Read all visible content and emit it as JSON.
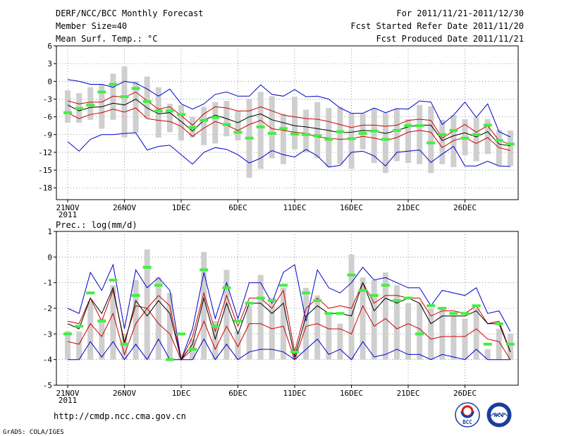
{
  "header": {
    "title": "DERF/NCC/BCC Monthly Forecast",
    "member_size": "Member Size=40",
    "variable": "Mean Surf. Temp.: °C",
    "for_period": "For 2011/11/21-2011/12/30",
    "fcst_started": "Fcst Started Refer Date 2011/11/20",
    "fcst_produced": "Fcst Produced Date 2011/11/21"
  },
  "footer": {
    "url": "http://cmdp.ncc.cma.gov.cn",
    "credit": "GrADS: COLA/IGES",
    "logo_bcc": "BCC",
    "logo_ncc": "NCC"
  },
  "colors": {
    "max_min": "#0000cc",
    "quartile": "#cc0000",
    "median": "#000000",
    "spread_bar": "#cfcfcf",
    "highlight": "#44ee44",
    "grid": "#808080"
  },
  "chart_data": [
    {
      "type": "box-spread-line",
      "title": "Mean Surf. Temp.: °C",
      "ylim": [
        -20,
        6
      ],
      "yticks": [
        6,
        3,
        0,
        -3,
        -6,
        -9,
        -12,
        -15,
        -18
      ],
      "xticks": [
        {
          "day": 1,
          "label": "21NOV",
          "sub": "2011"
        },
        {
          "day": 6,
          "label": "26NOV"
        },
        {
          "day": 11,
          "label": "1DEC"
        },
        {
          "day": 16,
          "label": "6DEC"
        },
        {
          "day": 21,
          "label": "11DEC"
        },
        {
          "day": 26,
          "label": "16DEC"
        },
        {
          "day": 31,
          "label": "21DEC"
        },
        {
          "day": 36,
          "label": "26DEC"
        }
      ],
      "days": [
        1,
        2,
        3,
        4,
        5,
        6,
        7,
        8,
        9,
        10,
        11,
        12,
        13,
        14,
        15,
        16,
        17,
        18,
        19,
        20,
        21,
        22,
        23,
        24,
        25,
        26,
        27,
        28,
        29,
        30,
        31,
        32,
        33,
        34,
        35,
        36,
        37,
        38,
        39,
        40
      ],
      "series": [
        {
          "name": "max",
          "values": [
            0.3,
            0,
            -0.5,
            -0.5,
            -1,
            0,
            -0.3,
            -1.3,
            -2.5,
            -1.3,
            -3.8,
            -4.7,
            -3.8,
            -2.2,
            -1.8,
            -2.5,
            -2.5,
            -0.6,
            -2.2,
            -2.5,
            -1.4,
            -2.6,
            -2.5,
            -3,
            -4.5,
            -5.4,
            -5.4,
            -4.5,
            -5.3,
            -4.6,
            -4.7,
            -3.3,
            -3.5,
            -7.3,
            -5.7,
            -3.5,
            -6.1,
            -3.8,
            -8.5,
            -9.4
          ]
        },
        {
          "name": "upper_quartile",
          "values": [
            -3.3,
            -3.8,
            -3.5,
            -3.5,
            -2.5,
            -2.7,
            -1.8,
            -3.3,
            -4.7,
            -4.3,
            -5.8,
            -7.4,
            -5.5,
            -4.3,
            -4.5,
            -5,
            -5,
            -4.3,
            -5,
            -5.7,
            -6,
            -6.3,
            -6.4,
            -6.8,
            -7.3,
            -7.8,
            -7.4,
            -7.4,
            -7.6,
            -7.4,
            -6.6,
            -6.4,
            -6.6,
            -9.6,
            -8.4,
            -7.3,
            -8.6,
            -7.5,
            -10,
            -10.6
          ]
        },
        {
          "name": "median",
          "values": [
            -4,
            -5,
            -4.4,
            -4.3,
            -3.7,
            -4,
            -3,
            -4.5,
            -5.5,
            -5.3,
            -6.8,
            -8.4,
            -6.6,
            -5.7,
            -6.3,
            -7,
            -6,
            -5.5,
            -6.5,
            -7,
            -7.5,
            -7.7,
            -8,
            -8.3,
            -8.7,
            -8.6,
            -8.3,
            -8.4,
            -8.8,
            -8.3,
            -7.7,
            -7.4,
            -7.4,
            -10,
            -9.2,
            -8.7,
            -9.4,
            -8.5,
            -10.6,
            -10.9
          ]
        },
        {
          "name": "lower_quartile",
          "values": [
            -5.3,
            -6.3,
            -5.6,
            -5.3,
            -4.7,
            -5.2,
            -4.5,
            -6.3,
            -6.6,
            -6.8,
            -7.6,
            -9.3,
            -7.9,
            -6.8,
            -7.4,
            -8.3,
            -7.3,
            -6.6,
            -8,
            -8.3,
            -8.6,
            -8.8,
            -9.4,
            -9.6,
            -9.8,
            -9.7,
            -9.3,
            -9.6,
            -10,
            -9.5,
            -8.6,
            -8.3,
            -8.6,
            -11.2,
            -10,
            -9.5,
            -10.5,
            -9.5,
            -11.2,
            -11.7
          ]
        },
        {
          "name": "min",
          "values": [
            -10.2,
            -11.8,
            -9.8,
            -9,
            -9,
            -8.8,
            -8.7,
            -11.6,
            -11,
            -10.8,
            -12.4,
            -14,
            -12,
            -11.2,
            -11.5,
            -12.4,
            -13.8,
            -13,
            -11.7,
            -12.4,
            -12.8,
            -11.5,
            -12.6,
            -14.5,
            -14.2,
            -12,
            -11.8,
            -12.6,
            -14.3,
            -12,
            -11.8,
            -11.6,
            -13.7,
            -12.3,
            -11,
            -14.3,
            -14.3,
            -13.5,
            -14.3,
            -14.4
          ]
        },
        {
          "name": "spread_top",
          "values": [
            -1.5,
            -2,
            -1,
            -0.5,
            1.3,
            2.5,
            0,
            0.8,
            -1,
            -3.8,
            -4,
            -6,
            -4.3,
            -3.5,
            -3.3,
            -5,
            -3,
            -1.8,
            -2.5,
            -5.5,
            -2.6,
            -4.8,
            -3.5,
            -4.5,
            -4.3,
            -5.4,
            -5.5,
            -4.6,
            -5.3,
            -4.7,
            -6.4,
            -4,
            -4.2,
            -6.5,
            -5.7,
            -6.4,
            -6.1,
            -6.4,
            -8.2,
            -8.3
          ]
        },
        {
          "name": "spread_bottom",
          "values": [
            -7,
            -7,
            -6.5,
            -8,
            -6.5,
            -9.5,
            -8.7,
            -6.2,
            -9.5,
            -8.6,
            -10,
            -9.5,
            -10.8,
            -10.5,
            -9.3,
            -10,
            -16.3,
            -14.8,
            -13,
            -14,
            -11.5,
            -12,
            -13,
            -14.5,
            -14,
            -14.8,
            -11.5,
            -13.8,
            -15.5,
            -13.5,
            -13.8,
            -14,
            -15.5,
            -14,
            -14.5,
            -12.5,
            -13.5,
            -12.3,
            -14.2,
            -14.3
          ]
        },
        {
          "name": "highlight",
          "values": [
            -5.3,
            -4.6,
            -4,
            -1.8,
            -0.5,
            -2.6,
            -1.2,
            -3.4,
            -5,
            -5,
            -5.6,
            -7.8,
            -6.6,
            -6.1,
            -7.3,
            -8.6,
            -9.6,
            -7.7,
            -8.8,
            -8,
            -8.9,
            -9,
            -9.2,
            -9.8,
            -8.5,
            -9.7,
            -8.8,
            -8.4,
            -9.8,
            -8.3,
            -7.5,
            -7.5,
            -10.4,
            -9,
            -8.3,
            -9.6,
            -9,
            -7.4,
            -10,
            -10.6
          ]
        }
      ]
    },
    {
      "type": "box-spread-line",
      "title": "Prec.: log(mm/d)",
      "ylim": [
        -5,
        1
      ],
      "yticks": [
        1,
        0,
        -1,
        -2,
        -3,
        -4,
        -5
      ],
      "xticks": [
        {
          "day": 1,
          "label": "21NOV",
          "sub": "2011"
        },
        {
          "day": 6,
          "label": "26NOV"
        },
        {
          "day": 11,
          "label": "1DEC"
        },
        {
          "day": 16,
          "label": "6DEC"
        },
        {
          "day": 21,
          "label": "11DEC"
        },
        {
          "day": 26,
          "label": "16DEC"
        },
        {
          "day": 31,
          "label": "21DEC"
        },
        {
          "day": 36,
          "label": "26DEC"
        }
      ],
      "days": [
        1,
        2,
        3,
        4,
        5,
        6,
        7,
        8,
        9,
        10,
        11,
        12,
        13,
        14,
        15,
        16,
        17,
        18,
        19,
        20,
        21,
        22,
        23,
        24,
        25,
        26,
        27,
        28,
        29,
        30,
        31,
        32,
        33,
        34,
        35,
        36,
        37,
        38,
        39,
        40
      ],
      "series": [
        {
          "name": "max",
          "values": [
            -2,
            -2.2,
            -0.6,
            -1.3,
            -0.3,
            -2.8,
            -0.5,
            -1.2,
            -0.8,
            -1.3,
            -4,
            -2.8,
            -0.6,
            -2.4,
            -1,
            -2.4,
            -1,
            -1,
            -1.8,
            -0.6,
            -0.3,
            -2.5,
            -0.5,
            -1.2,
            -1.4,
            -1,
            -0.4,
            -0.9,
            -0.8,
            -1,
            -1.2,
            -1.2,
            -1.9,
            -1.3,
            -1.4,
            -1.5,
            -1.2,
            -2.2,
            -2.1,
            -2.9
          ]
        },
        {
          "name": "upper_quartile",
          "values": [
            -2.5,
            -2.6,
            -1.6,
            -2.5,
            -1.3,
            -3.3,
            -1.9,
            -2,
            -1.5,
            -1.9,
            -4,
            -3.1,
            -1.4,
            -2.9,
            -1.5,
            -2.7,
            -1.6,
            -1.6,
            -2,
            -1.3,
            -3.7,
            -2,
            -1.6,
            -2,
            -1.9,
            -2,
            -1,
            -1.8,
            -1.5,
            -1.5,
            -1.6,
            -1.6,
            -2.3,
            -2.1,
            -2.1,
            -2.2,
            -1.9,
            -2.6,
            -2.5,
            -3.7
          ]
        },
        {
          "name": "median",
          "values": [
            -2.6,
            -2.8,
            -1.6,
            -2.2,
            -1.2,
            -3.4,
            -1.7,
            -2.3,
            -1.7,
            -2.2,
            -4,
            -3.4,
            -1.6,
            -3.2,
            -1.8,
            -3,
            -1.8,
            -1.8,
            -2.2,
            -1.8,
            -3.9,
            -2.3,
            -1.9,
            -2.2,
            -2.2,
            -2.3,
            -1,
            -2.1,
            -1.6,
            -1.8,
            -1.6,
            -1.8,
            -2.6,
            -2.3,
            -2.3,
            -2.3,
            -2.1,
            -2.6,
            -2.6,
            -3.7
          ]
        },
        {
          "name": "lower_quartile",
          "values": [
            -3.3,
            -3.4,
            -2.6,
            -3.1,
            -2.2,
            -3.8,
            -2.6,
            -2,
            -2.6,
            -3,
            -4,
            -3.6,
            -2.5,
            -3.6,
            -2.7,
            -3.5,
            -2.6,
            -2.6,
            -2.8,
            -2.7,
            -4,
            -2.7,
            -2.6,
            -2.8,
            -2.8,
            -3,
            -1.9,
            -2.7,
            -2.4,
            -2.8,
            -2.6,
            -2.8,
            -3.2,
            -3.1,
            -3.1,
            -3.1,
            -2.8,
            -3.2,
            -3.3,
            -4
          ]
        },
        {
          "name": "min",
          "values": [
            -4,
            -4,
            -3.3,
            -3.9,
            -3.3,
            -4,
            -3.4,
            -4,
            -3.2,
            -4,
            -4,
            -4,
            -3.2,
            -4,
            -3.4,
            -4,
            -3.7,
            -3.6,
            -3.6,
            -3.7,
            -4,
            -3.6,
            -3.2,
            -3.8,
            -3.6,
            -4,
            -3.3,
            -3.9,
            -3.8,
            -3.6,
            -3.8,
            -3.8,
            -4,
            -3.8,
            -3.9,
            -4,
            -3.6,
            -4,
            -4,
            -4
          ]
        },
        {
          "name": "spread_top",
          "values": [
            -2.9,
            -2.9,
            -1.7,
            -2.4,
            -1.1,
            -3,
            -0.9,
            0.3,
            -0.8,
            -1.4,
            -3.8,
            -3.2,
            0.2,
            -2.5,
            -0.5,
            -2.9,
            -1.9,
            -0.7,
            -1.6,
            -1.2,
            -3.6,
            -1.2,
            -1.5,
            -2.2,
            -2.6,
            0.1,
            -0.8,
            -0.9,
            -0.6,
            -1.1,
            -1.8,
            -1.8,
            -2,
            -2,
            -2.3,
            -2.4,
            -2,
            -3.6,
            -2.8,
            -3
          ]
        },
        {
          "name": "spread_bottom",
          "values": [
            -4,
            -4,
            -4,
            -4,
            -4,
            -4,
            -4,
            -4,
            -4,
            -4,
            -4,
            -4,
            -4,
            -4,
            -4,
            -4,
            -4,
            -4,
            -4,
            -4,
            -4,
            -4,
            -4,
            -4,
            -4,
            -4,
            -4,
            -4,
            -4,
            -4,
            -4,
            -4,
            -4,
            -4,
            -4,
            -4,
            -4,
            -4,
            -4,
            -4
          ]
        },
        {
          "name": "highlight",
          "values": [
            -3,
            -2.7,
            -1.4,
            -2.5,
            -0.9,
            -3.4,
            -1.5,
            -0.4,
            -1.1,
            -4,
            -3,
            -3.6,
            -0.5,
            -2.7,
            -1.2,
            -2.5,
            -1.8,
            -1.6,
            -1.7,
            -1.1,
            -3.7,
            -1.4,
            -1.7,
            -2.2,
            -2.2,
            -0.7,
            -1.3,
            -1.5,
            -1.1,
            -1.7,
            -1.6,
            -3,
            -1.9,
            -2,
            -2.2,
            -2.2,
            -1.9,
            -3.4,
            -2.6,
            -3.4
          ]
        }
      ]
    }
  ]
}
